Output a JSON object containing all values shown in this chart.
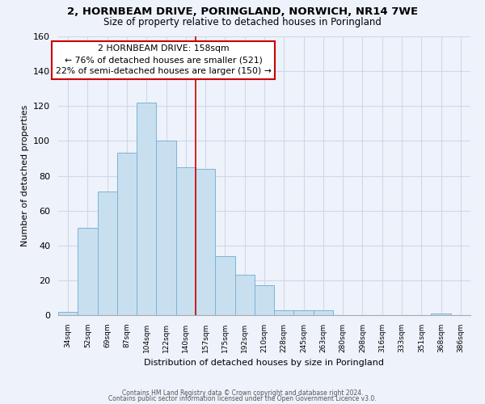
{
  "title": "2, HORNBEAM DRIVE, PORINGLAND, NORWICH, NR14 7WE",
  "subtitle": "Size of property relative to detached houses in Poringland",
  "xlabel": "Distribution of detached houses by size in Poringland",
  "ylabel": "Number of detached properties",
  "bar_color": "#c8dff0",
  "bar_edge_color": "#7ab4d4",
  "background_color": "#eef2fb",
  "grid_color": "#d0d8e8",
  "categories": [
    "34sqm",
    "52sqm",
    "69sqm",
    "87sqm",
    "104sqm",
    "122sqm",
    "140sqm",
    "157sqm",
    "175sqm",
    "192sqm",
    "210sqm",
    "228sqm",
    "245sqm",
    "263sqm",
    "280sqm",
    "298sqm",
    "316sqm",
    "333sqm",
    "351sqm",
    "368sqm",
    "386sqm"
  ],
  "values": [
    2,
    50,
    71,
    93,
    122,
    100,
    85,
    84,
    34,
    23,
    17,
    3,
    3,
    3,
    0,
    0,
    0,
    0,
    0,
    1,
    0
  ],
  "ylim": [
    0,
    160
  ],
  "yticks": [
    0,
    20,
    40,
    60,
    80,
    100,
    120,
    140,
    160
  ],
  "property_line_x": 7.0,
  "property_size": "158sqm",
  "property_name": "2 HORNBEAM DRIVE",
  "pct_smaller": "76%",
  "count_smaller": 521,
  "pct_larger": "22%",
  "count_larger": 150,
  "footer1": "Contains HM Land Registry data © Crown copyright and database right 2024.",
  "footer2": "Contains public sector information licensed under the Open Government Licence v3.0."
}
